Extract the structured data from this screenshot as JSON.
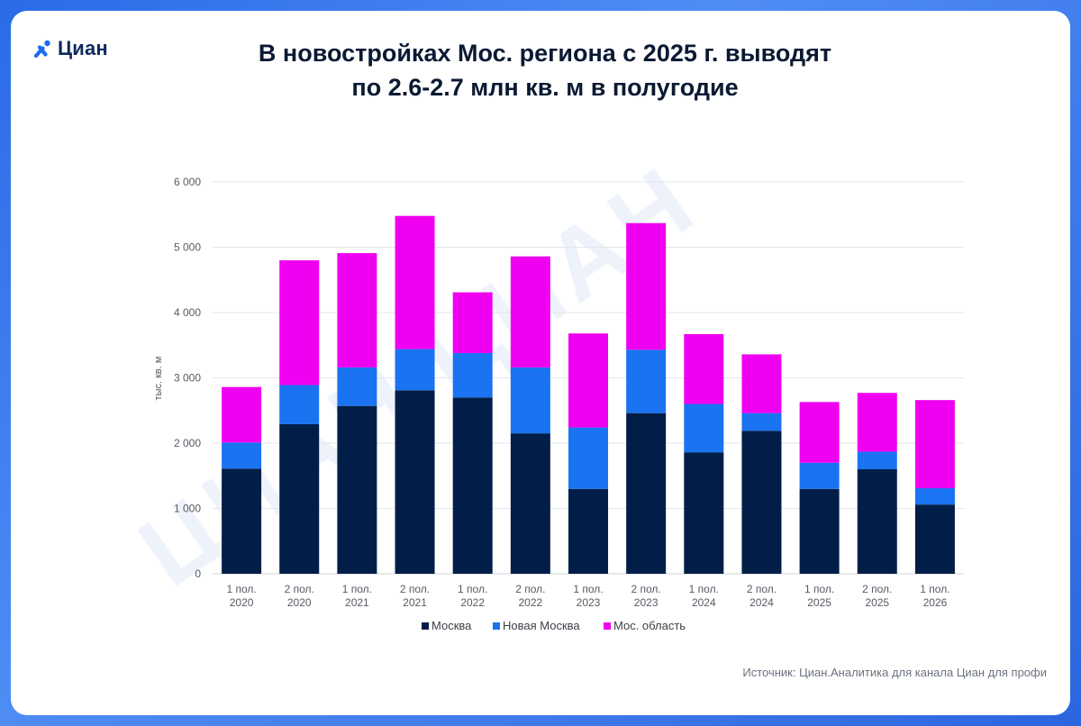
{
  "brand": {
    "name": "Циан"
  },
  "header": {
    "title_line1": "В новостройках Мос. региона с 2025 г. выводят",
    "title_line2": "по 2.6-2.7 млн кв. м в полугодие"
  },
  "footer": {
    "source": "Источник: Циан.Аналитика для канала Циан для профи"
  },
  "colors": {
    "moscow": "#001e47",
    "new_moscow": "#1a73f0",
    "oblast": "#f000f0",
    "grid": "#e3e6ea"
  },
  "chart_data": {
    "type": "bar",
    "stacked": true,
    "title": "В новостройках Мос. региона с 2025 г. выводят по 2.6-2.7 млн кв. м в полугодие",
    "ylabel": "тыс. кв. м",
    "ylim": [
      0,
      6000
    ],
    "yticks": [
      0,
      1000,
      2000,
      3000,
      4000,
      5000,
      6000
    ],
    "ytick_labels": [
      "0",
      "1 000",
      "2 000",
      "3 000",
      "4 000",
      "5 000",
      "6 000"
    ],
    "grid": true,
    "legend_position": "bottom",
    "categories": [
      [
        "1 пол.",
        "2020"
      ],
      [
        "2 пол.",
        "2020"
      ],
      [
        "1 пол.",
        "2021"
      ],
      [
        "2 пол.",
        "2021"
      ],
      [
        "1 пол.",
        "2022"
      ],
      [
        "2 пол.",
        "2022"
      ],
      [
        "1 пол.",
        "2023"
      ],
      [
        "2 пол.",
        "2023"
      ],
      [
        "1 пол.",
        "2024"
      ],
      [
        "2 пол.",
        "2024"
      ],
      [
        "1 пол.",
        "2025"
      ],
      [
        "2 пол.",
        "2025"
      ],
      [
        "1 пол.",
        "2026"
      ]
    ],
    "series": [
      {
        "name": "Москва",
        "color": "#001e47",
        "values": [
          1610,
          2290,
          2570,
          2810,
          2700,
          2150,
          1300,
          2460,
          1860,
          2190,
          1300,
          1600,
          1060
        ]
      },
      {
        "name": "Новая Москва",
        "color": "#1a73f0",
        "values": [
          400,
          600,
          590,
          630,
          680,
          1010,
          940,
          970,
          740,
          270,
          400,
          270,
          250
        ]
      },
      {
        "name": "Мос. область",
        "color": "#f000f0",
        "values": [
          850,
          1910,
          1750,
          2040,
          930,
          1700,
          1440,
          1940,
          1070,
          900,
          930,
          900,
          1350
        ]
      }
    ]
  }
}
